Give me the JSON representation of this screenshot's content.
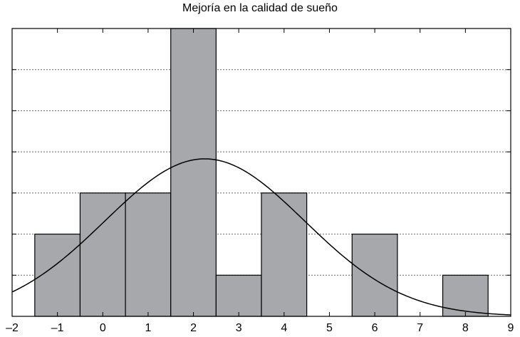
{
  "chart_data": {
    "type": "bar",
    "title": "Mejoría en la calidad de sueño",
    "xlabel": "",
    "ylabel": "",
    "xlim": [
      -2,
      9
    ],
    "ylim": [
      0,
      7
    ],
    "x_ticks": [
      "–2",
      "–1",
      "0",
      "1",
      "2",
      "3",
      "4",
      "5",
      "6",
      "7",
      "8",
      "9"
    ],
    "y_gridlines": [
      1,
      2,
      3,
      4,
      5,
      6,
      7
    ],
    "grid": "horizontal dotted",
    "bins": [
      {
        "start": -1.5,
        "end": -0.5,
        "count": 2
      },
      {
        "start": -0.5,
        "end": 0.5,
        "count": 3
      },
      {
        "start": 0.5,
        "end": 1.5,
        "count": 3
      },
      {
        "start": 1.5,
        "end": 2.5,
        "count": 7
      },
      {
        "start": 2.5,
        "end": 3.5,
        "count": 1
      },
      {
        "start": 3.5,
        "end": 4.5,
        "count": 3
      },
      {
        "start": 4.5,
        "end": 5.5,
        "count": 0
      },
      {
        "start": 5.5,
        "end": 6.5,
        "count": 2
      },
      {
        "start": 6.5,
        "end": 7.5,
        "count": 0
      },
      {
        "start": 7.5,
        "end": 8.5,
        "count": 1
      }
    ],
    "normal_curve": {
      "mean": 2.25,
      "sd": 2.2,
      "peak": 3.83
    },
    "colors": {
      "bar": "#a7a8ab",
      "bar_edge": "#000000",
      "curve": "#000000",
      "grid": "#666666"
    }
  }
}
